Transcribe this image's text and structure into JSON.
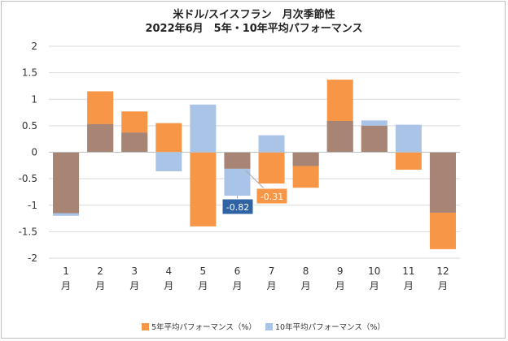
{
  "chart_data": {
    "type": "bar",
    "title": "米ドル/スイスフラン　月次季節性",
    "subtitle": "2022年6月　5年・10年平均パフォーマンス",
    "categories": [
      "1",
      "2",
      "3",
      "4",
      "5",
      "6",
      "7",
      "8",
      "9",
      "10",
      "11",
      "12"
    ],
    "category_unit": "月",
    "series": [
      {
        "name": "5年平均パフォーマンス（%）",
        "color": "#f79646",
        "values": [
          -1.15,
          1.15,
          0.77,
          0.55,
          -1.4,
          -0.31,
          -0.59,
          -0.67,
          1.37,
          0.5,
          -0.33,
          -1.83
        ]
      },
      {
        "name": "10年平均パフォーマンス（%）",
        "color": "#a9c4e6",
        "values": [
          -1.2,
          0.53,
          0.37,
          -0.36,
          0.9,
          -0.82,
          0.32,
          -0.26,
          0.59,
          0.6,
          0.52,
          -1.14
        ]
      }
    ],
    "overlap_color": "#a88474",
    "ylim": [
      -2,
      2
    ],
    "yticks": [
      -2,
      -1.5,
      -1,
      -0.5,
      0,
      0.5,
      1,
      1.5,
      2
    ],
    "ytick_labels": [
      "-2",
      "-1.5",
      "-1",
      "-0.5",
      "0",
      "0.5",
      "1",
      "1.5",
      "2"
    ],
    "grid": true,
    "legend_position": "bottom",
    "annotations": [
      {
        "label": "-0.82",
        "series": 1,
        "category": "6",
        "color": "#2f63a3"
      },
      {
        "label": "-0.31",
        "series": 0,
        "category": "6",
        "color": "#f79646"
      }
    ]
  }
}
